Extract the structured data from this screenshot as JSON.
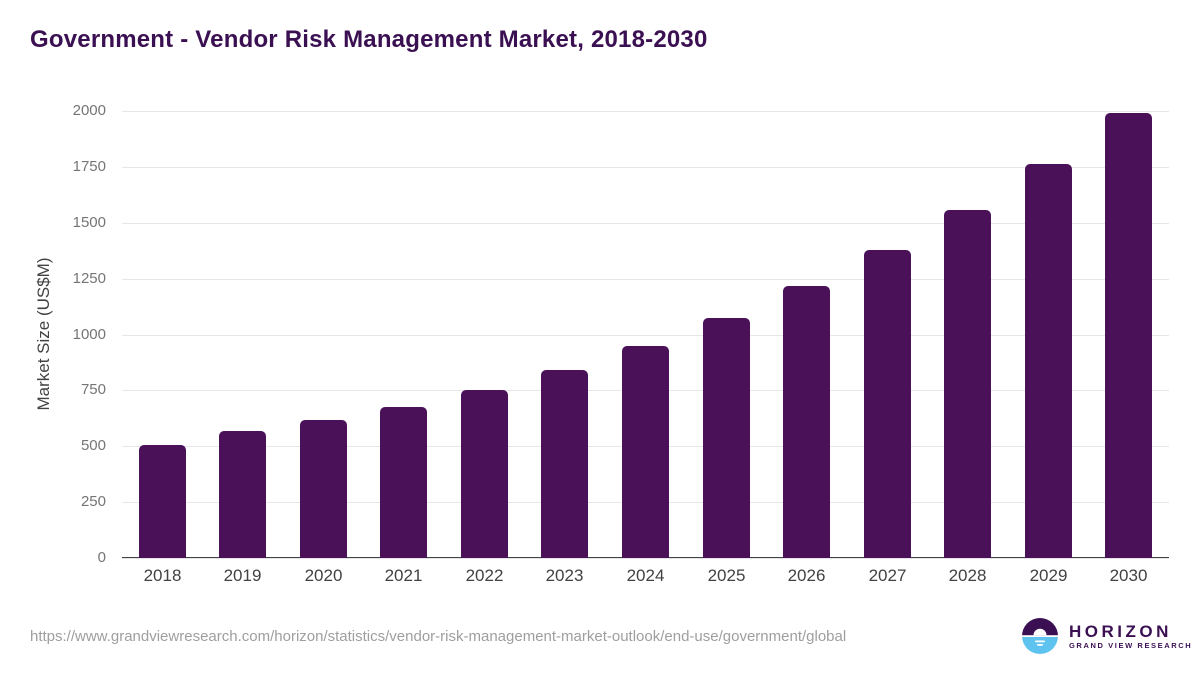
{
  "title": "Government - Vendor Risk Management Market, 2018-2030",
  "chart_data": {
    "type": "bar",
    "categories": [
      "2018",
      "2019",
      "2020",
      "2021",
      "2022",
      "2023",
      "2024",
      "2025",
      "2026",
      "2027",
      "2028",
      "2029",
      "2030"
    ],
    "values": [
      506,
      568,
      618,
      674,
      752,
      843,
      948,
      1075,
      1215,
      1378,
      1558,
      1765,
      1993
    ],
    "title": "Government - Vendor Risk Management Market, 2018-2030",
    "xlabel": "",
    "ylabel": "Market Size (US$M)",
    "ylim": [
      0,
      2000
    ],
    "yticks": [
      0,
      250,
      500,
      750,
      1000,
      1250,
      1500,
      1750,
      2000
    ],
    "grid": true,
    "legend": "none",
    "bar_color": "#4a1158"
  },
  "footer": {
    "source_url": "https://www.grandviewresearch.com/horizon/statistics/vendor-risk-management-market-outlook/end-use/government/global"
  },
  "logo": {
    "name": "HORIZON",
    "subtitle": "GRAND VIEW RESEARCH",
    "icon": "horizon-sunrise-icon",
    "colors": {
      "purple": "#3b1053",
      "blue": "#5ec3ee"
    }
  }
}
